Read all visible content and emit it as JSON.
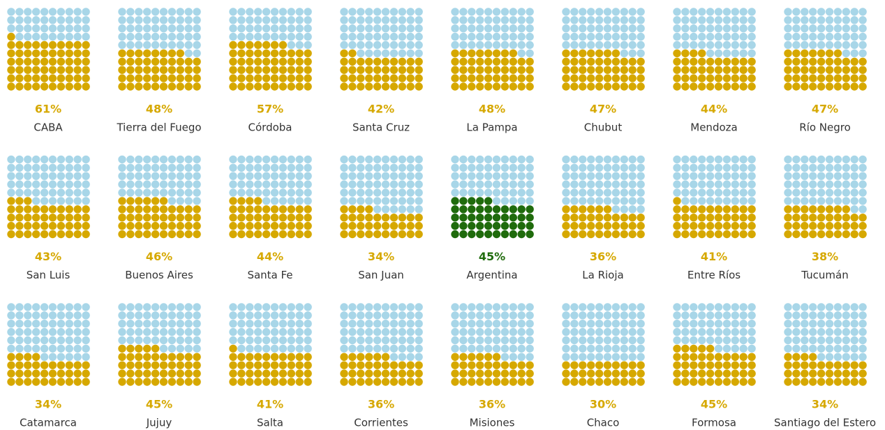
{
  "chart_data": {
    "type": "waffle",
    "categories": [
      "CABA",
      "Tierra del Fuego",
      "Córdoba",
      "Santa Cruz",
      "La Pampa",
      "Chubut",
      "Mendoza",
      "Río Negro",
      "San Luis",
      "Buenos Aires",
      "Santa Fe",
      "San Juan",
      "Argentina",
      "La Rioja",
      "Entre Ríos",
      "Tucumán",
      "Catamarca",
      "Jujuy",
      "Salta",
      "Corrientes",
      "Misiones",
      "Chaco",
      "Formosa",
      "Santiago del Estero"
    ],
    "values": [
      61,
      48,
      57,
      42,
      48,
      47,
      44,
      47,
      43,
      46,
      44,
      34,
      45,
      36,
      41,
      38,
      34,
      45,
      41,
      36,
      36,
      30,
      45,
      34
    ],
    "value_labels": [
      "61%",
      "48%",
      "57%",
      "42%",
      "48%",
      "47%",
      "44%",
      "47%",
      "43%",
      "46%",
      "44%",
      "34%",
      "45%",
      "36%",
      "41%",
      "38%",
      "34%",
      "45%",
      "41%",
      "36%",
      "36%",
      "30%",
      "45%",
      "34%"
    ],
    "colors": [
      "#d6a800",
      "#d6a800",
      "#d6a800",
      "#d6a800",
      "#d6a800",
      "#d6a800",
      "#d6a800",
      "#d6a800",
      "#d6a800",
      "#d6a800",
      "#d6a800",
      "#d6a800",
      "#1f6b0c",
      "#d6a800",
      "#d6a800",
      "#d6a800",
      "#d6a800",
      "#d6a800",
      "#d6a800",
      "#d6a800",
      "#d6a800",
      "#d6a800",
      "#d6a800",
      "#d6a800"
    ],
    "empty_color": "#a8d6e8"
  }
}
